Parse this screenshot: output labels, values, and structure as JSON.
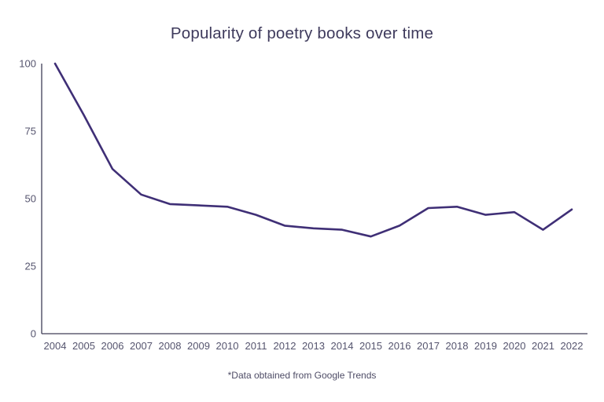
{
  "title": "Popularity of poetry books over time",
  "footnote": "*Data obtained from Google Trends",
  "chart_data": {
    "type": "line",
    "title": "Popularity of poetry books over time",
    "xlabel": "",
    "ylabel": "",
    "categories": [
      "2004",
      "2005",
      "2006",
      "2007",
      "2008",
      "2009",
      "2010",
      "2011",
      "2012",
      "2013",
      "2014",
      "2015",
      "2016",
      "2017",
      "2018",
      "2019",
      "2020",
      "2021",
      "2022"
    ],
    "values": [
      100,
      81,
      61,
      51.5,
      48,
      47.5,
      47,
      44,
      40,
      39,
      38.5,
      36,
      40,
      46.5,
      47,
      44,
      45,
      38.5,
      46
    ],
    "ylim": [
      0,
      100
    ],
    "yticks": [
      0,
      25,
      50,
      75,
      100
    ],
    "grid": false,
    "legend": "none",
    "annotation": "*Data obtained from Google Trends",
    "line_color": "#3f2f76",
    "axis_color": "#403e58",
    "tick_label_color": "#55546e",
    "title_color": "#3e3a5c"
  }
}
